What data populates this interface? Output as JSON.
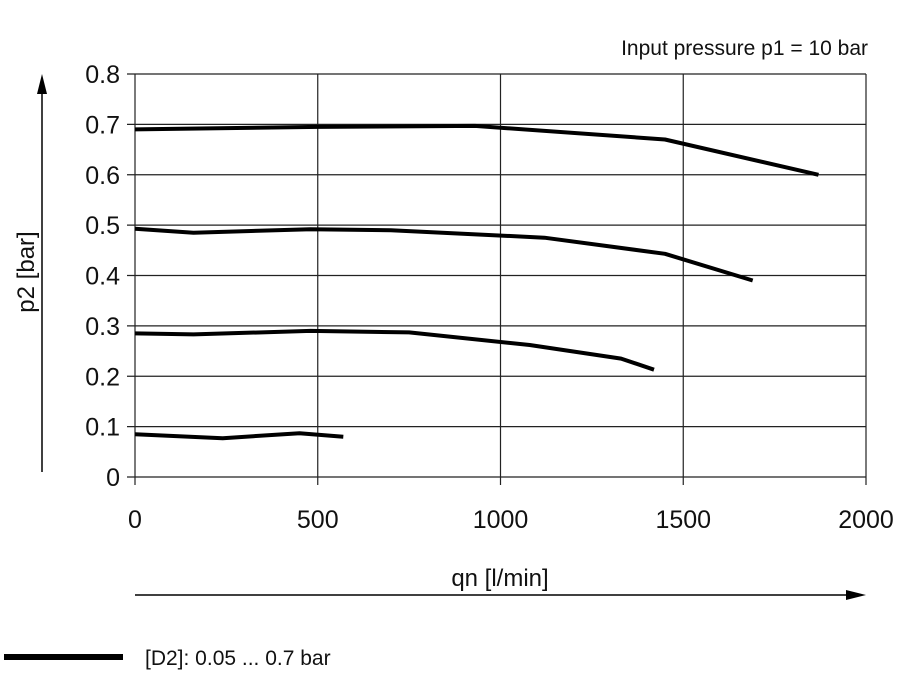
{
  "chart_data": {
    "type": "line",
    "title": "Input pressure p1 = 10 bar",
    "xlabel": "qn [l/min]",
    "ylabel": "p2 [bar]",
    "xlim": [
      0,
      2000
    ],
    "ylim": [
      0,
      0.8
    ],
    "xticks": [
      0,
      500,
      1000,
      1500,
      2000
    ],
    "xtick_labels": [
      "0",
      "500",
      "1000",
      "1500",
      "2000"
    ],
    "yticks": [
      0,
      0.1,
      0.2,
      0.3,
      0.4,
      0.5,
      0.6,
      0.7,
      0.8
    ],
    "ytick_labels": [
      "0",
      "0.1",
      "0.2",
      "0.3",
      "0.4",
      "0.5",
      "0.6",
      "0.7",
      "0.8"
    ],
    "grid": true,
    "legend": {
      "placement": "bottom-left",
      "label": "[D2]: 0.05 ... 0.7 bar"
    },
    "line_color": "#000000",
    "series": [
      {
        "points": [
          [
            0,
            0.69
          ],
          [
            500,
            0.695
          ],
          [
            930,
            0.697
          ],
          [
            1450,
            0.67
          ],
          [
            1870,
            0.6
          ]
        ]
      },
      {
        "points": [
          [
            0,
            0.493
          ],
          [
            160,
            0.485
          ],
          [
            480,
            0.492
          ],
          [
            700,
            0.49
          ],
          [
            1120,
            0.475
          ],
          [
            1450,
            0.443
          ],
          [
            1690,
            0.39
          ]
        ]
      },
      {
        "points": [
          [
            0,
            0.285
          ],
          [
            160,
            0.283
          ],
          [
            480,
            0.29
          ],
          [
            750,
            0.287
          ],
          [
            1080,
            0.262
          ],
          [
            1330,
            0.235
          ],
          [
            1420,
            0.213
          ]
        ]
      },
      {
        "points": [
          [
            0,
            0.085
          ],
          [
            240,
            0.077
          ],
          [
            450,
            0.087
          ],
          [
            570,
            0.08
          ]
        ]
      }
    ]
  }
}
